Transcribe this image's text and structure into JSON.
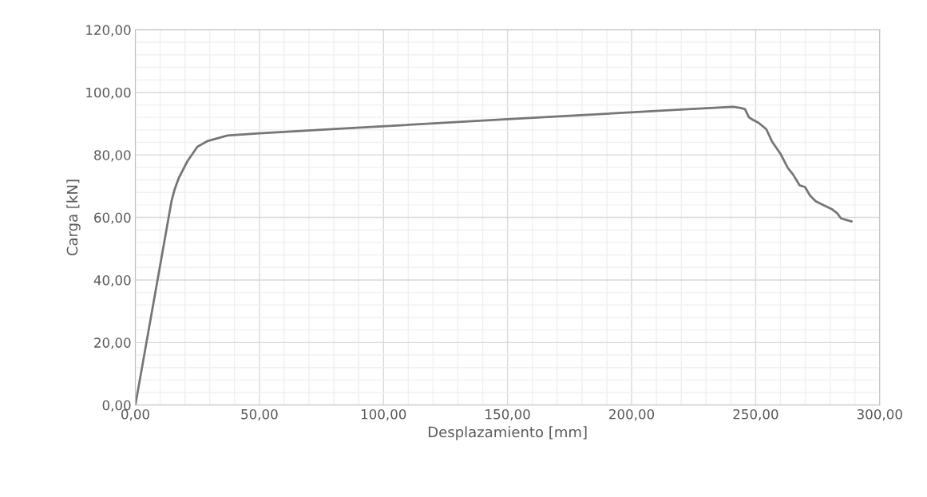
{
  "chart_data": {
    "type": "line",
    "xlabel": "Desplazamiento [mm]",
    "ylabel": "Carga [kN]",
    "x": [
      0,
      14.6,
      15.8,
      17.5,
      21.0,
      25.0,
      29.0,
      37.1,
      50,
      80.6,
      150,
      222.6,
      240.9,
      244.1,
      245.7,
      247.3,
      248.9,
      251.1,
      254.3,
      256.5,
      260.2,
      262.9,
      265.1,
      267.7,
      269.9,
      272.0,
      274.2,
      277.4,
      280.6,
      282.8,
      284.4,
      288.7
    ],
    "series": [
      {
        "color": "#767676",
        "values": [
          0,
          65.3,
          68.9,
          72.6,
          78.0,
          82.6,
          84.4,
          86.2,
          86.9,
          88.3,
          91.4,
          94.6,
          95.4,
          95.0,
          94.6,
          92.0,
          91.2,
          90.3,
          88.2,
          84.4,
          80.1,
          75.9,
          73.7,
          70.3,
          69.7,
          66.9,
          65.2,
          63.9,
          62.7,
          61.4,
          59.7,
          58.7
        ]
      }
    ],
    "xlim": [
      0,
      300
    ],
    "ylim": [
      0,
      120
    ],
    "xticks": [
      {
        "value": 0,
        "label": "0,00"
      },
      {
        "value": 50,
        "label": "50,00"
      },
      {
        "value": 100,
        "label": "100,00"
      },
      {
        "value": 150,
        "label": "150,00"
      },
      {
        "value": 200,
        "label": "200,00"
      },
      {
        "value": 250,
        "label": "250,00"
      },
      {
        "value": 300,
        "label": "300,00"
      }
    ],
    "yticks": [
      {
        "value": 0,
        "label": "0,00"
      },
      {
        "value": 20,
        "label": "20,00"
      },
      {
        "value": 40,
        "label": "40,00"
      },
      {
        "value": 60,
        "label": "60,00"
      },
      {
        "value": 80,
        "label": "80,00"
      },
      {
        "value": 100,
        "label": "100,00"
      },
      {
        "value": 120,
        "label": "120,00"
      }
    ],
    "grid": true,
    "marker": "none",
    "line_style": "solid"
  }
}
